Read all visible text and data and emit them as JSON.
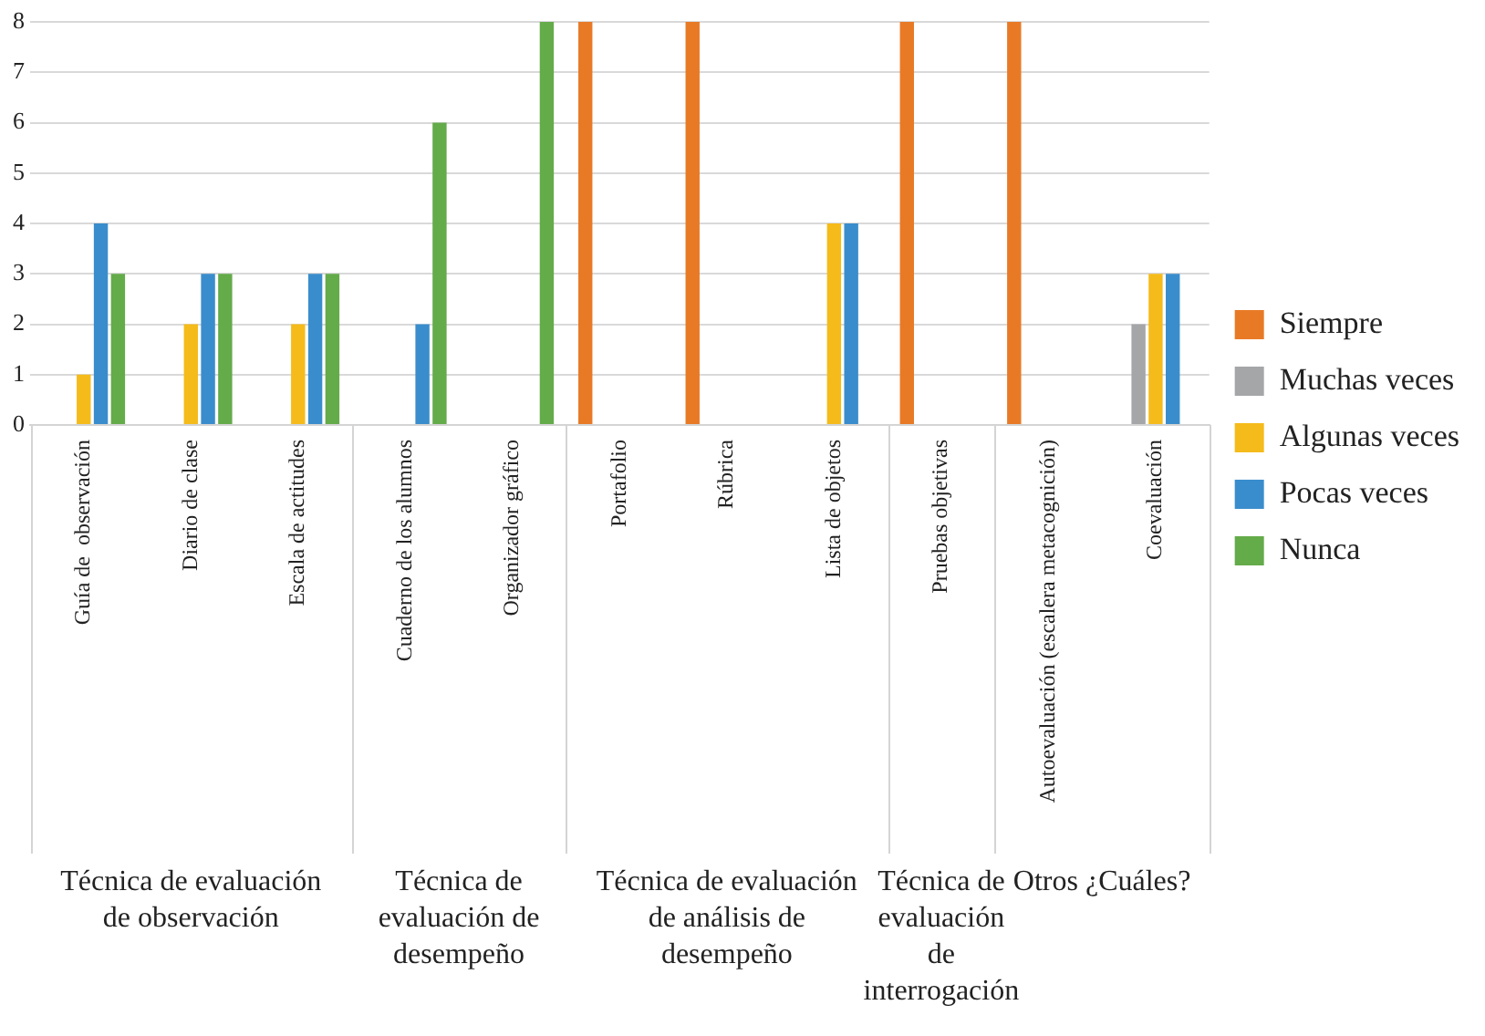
{
  "chart_data": {
    "type": "bar",
    "categories": [
      "Guía de  observación",
      "Diario de clase",
      "Escala de actitudes",
      "Cuaderno de los alumnos",
      "Organizador gráfico",
      "Portafolio",
      "Rúbrica",
      "Lista de objetos",
      "Pruebas objetivas",
      "Autoevaluación (escalera metacognición)",
      "Coevaluación"
    ],
    "series": [
      {
        "name": "Siempre",
        "color": "#e87a26",
        "values": [
          0,
          0,
          0,
          0,
          0,
          8,
          8,
          0,
          8,
          8,
          0
        ]
      },
      {
        "name": "Muchas veces",
        "color": "#a5a6a8",
        "values": [
          0,
          0,
          0,
          0,
          0,
          0,
          0,
          0,
          0,
          0,
          2
        ]
      },
      {
        "name": "Algunas veces",
        "color": "#f5bb1a",
        "values": [
          1,
          2,
          2,
          0,
          0,
          0,
          0,
          4,
          0,
          0,
          3
        ]
      },
      {
        "name": "Pocas veces",
        "color": "#3a8dcc",
        "values": [
          4,
          3,
          3,
          2,
          0,
          0,
          0,
          4,
          0,
          0,
          3
        ]
      },
      {
        "name": "Nunca",
        "color": "#64ab4a",
        "values": [
          3,
          3,
          3,
          6,
          8,
          0,
          0,
          0,
          0,
          0,
          0
        ]
      }
    ],
    "ylim": [
      0,
      8
    ],
    "yticks": [
      0,
      1,
      2,
      3,
      4,
      5,
      6,
      7,
      8
    ],
    "grid": "y",
    "legend": "right",
    "annotations": [
      "Técnica de evaluación de observación",
      "Técnica de evaluación de desempeño",
      "Técnica de evaluación de análisis de desempeño",
      "Técnica de evaluación de interrogación",
      "Otros ¿Cuáles?"
    ]
  }
}
